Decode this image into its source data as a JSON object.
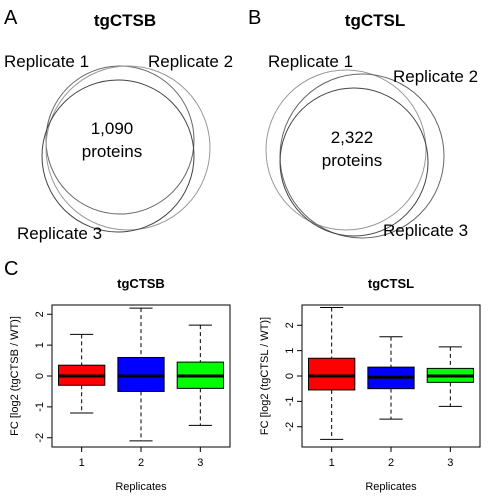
{
  "panel_a": {
    "letter": "A",
    "title": "tgCTSB",
    "replicate_labels": [
      "Replicate 1",
      "Replicate 2",
      "Replicate 3"
    ],
    "count_line1": "1,090",
    "count_line2": "proteins"
  },
  "panel_b": {
    "letter": "B",
    "title": "tgCTSL",
    "replicate_labels": [
      "Replicate 1",
      "Replicate 2",
      "Replicate 3"
    ],
    "count_line1": "2,322",
    "count_line2": "proteins"
  },
  "panel_c": {
    "letter": "C",
    "colors": {
      "rep1": "#ff0000",
      "rep2": "#0000ff",
      "rep3": "#00ff00"
    },
    "chart_data": [
      {
        "type": "box",
        "title": "tgCTSB",
        "xlabel": "Replicates",
        "ylabel": "FC [log2 (tgCTSB / WT)]",
        "ylim": [
          -2.3,
          2.3
        ],
        "yticks": [
          -2,
          -1,
          0,
          1,
          2
        ],
        "categories": [
          "1",
          "2",
          "3"
        ],
        "boxes": [
          {
            "name": "1",
            "whisker_low": -1.2,
            "q1": -0.3,
            "median": 0.0,
            "q3": 0.35,
            "whisker_high": 1.35
          },
          {
            "name": "2",
            "whisker_low": -2.1,
            "q1": -0.5,
            "median": 0.0,
            "q3": 0.6,
            "whisker_high": 2.2
          },
          {
            "name": "3",
            "whisker_low": -1.6,
            "q1": -0.4,
            "median": 0.0,
            "q3": 0.45,
            "whisker_high": 1.65
          }
        ]
      },
      {
        "type": "box",
        "title": "tgCTSL",
        "xlabel": "Replicates",
        "ylabel": "FC [log2 (tgCTSL / WT)]",
        "ylim": [
          -2.8,
          2.8
        ],
        "yticks": [
          -2,
          -1,
          0,
          1,
          2
        ],
        "categories": [
          "1",
          "2",
          "3"
        ],
        "boxes": [
          {
            "name": "1",
            "whisker_low": -2.5,
            "q1": -0.55,
            "median": 0.0,
            "q3": 0.7,
            "whisker_high": 2.7
          },
          {
            "name": "2",
            "whisker_low": -1.7,
            "q1": -0.5,
            "median": -0.05,
            "q3": 0.35,
            "whisker_high": 1.55
          },
          {
            "name": "3",
            "whisker_low": -1.2,
            "q1": -0.25,
            "median": 0.0,
            "q3": 0.3,
            "whisker_high": 1.15
          }
        ]
      }
    ]
  }
}
